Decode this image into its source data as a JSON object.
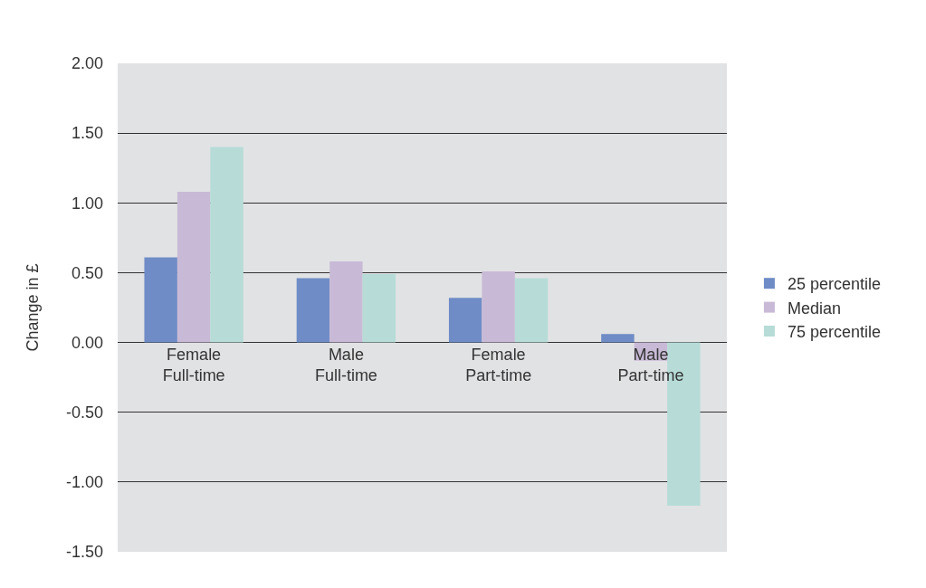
{
  "chart_data": {
    "type": "bar",
    "ylabel": "Change in £",
    "categories": [
      "Female\nFull-time",
      "Male\nFull-time",
      "Female\nPart-time",
      "Male\nPart-time"
    ],
    "series": [
      {
        "name": "25 percentile",
        "color": "#6f8cc6",
        "values": [
          0.61,
          0.46,
          0.32,
          0.06
        ]
      },
      {
        "name": "Median",
        "color": "#c8bad6",
        "values": [
          1.08,
          0.58,
          0.51,
          -0.13
        ]
      },
      {
        "name": "75 percentile",
        "color": "#b7dcd8",
        "values": [
          1.4,
          0.49,
          0.46,
          -1.17
        ]
      }
    ],
    "ylim": [
      -1.5,
      2.0
    ],
    "yticks": [
      {
        "value": -1.5,
        "label": "-1.50"
      },
      {
        "value": -1.0,
        "label": "-1.00"
      },
      {
        "value": -0.5,
        "label": "-0.50"
      },
      {
        "value": 0,
        "label": "0.00"
      },
      {
        "value": 0.5,
        "label": "0.50"
      },
      {
        "value": 1.0,
        "label": "1.00"
      },
      {
        "value": 1.5,
        "label": "1.50"
      },
      {
        "value": 2.0,
        "label": "2.00"
      }
    ],
    "grid": "y",
    "legend": "right"
  }
}
